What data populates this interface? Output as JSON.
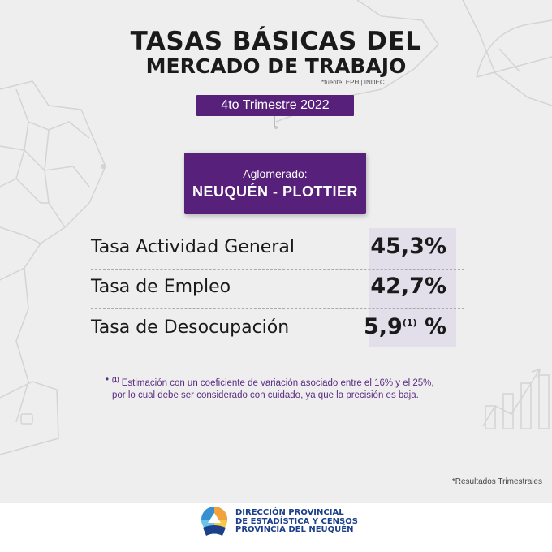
{
  "title": {
    "line1": "TASAS BÁSICAS DEL",
    "line2": "MERCADO DE TRABAJO"
  },
  "source": "*fuente: EPH | INDEC",
  "period": "4to Trimestre 2022",
  "agglomerate": {
    "label": "Aglomerado:",
    "value": "NEUQUÉN - PLOTTIER"
  },
  "rates": [
    {
      "label": "Tasa Actividad General",
      "value": "45,3%"
    },
    {
      "label": "Tasa de Empleo",
      "value": "42,7%"
    },
    {
      "label": "Tasa de Desocupación",
      "value_main": "5,9",
      "value_sup": "(1)",
      "value_unit": " %"
    }
  ],
  "footnote": {
    "bullet": "•",
    "marker": "(1)",
    "text": " Estimación con un coeficiente de variación asociado entre el 16% y el 25%, por lo cual debe ser considerado con cuidado, ya que la precisión es baja."
  },
  "results_note": "*Resultados Trimestrales",
  "organization": {
    "line1": "DIRECCIÓN  PROVINCIAL",
    "line2": "DE ESTADÍSTICA Y CENSOS",
    "line3": "PROVINCIA DEL NEUQUÉN"
  },
  "colors": {
    "accent": "#57207a",
    "background": "#eeeeee",
    "value_panel": "#e2dfea",
    "org_text": "#1b3f8a"
  }
}
